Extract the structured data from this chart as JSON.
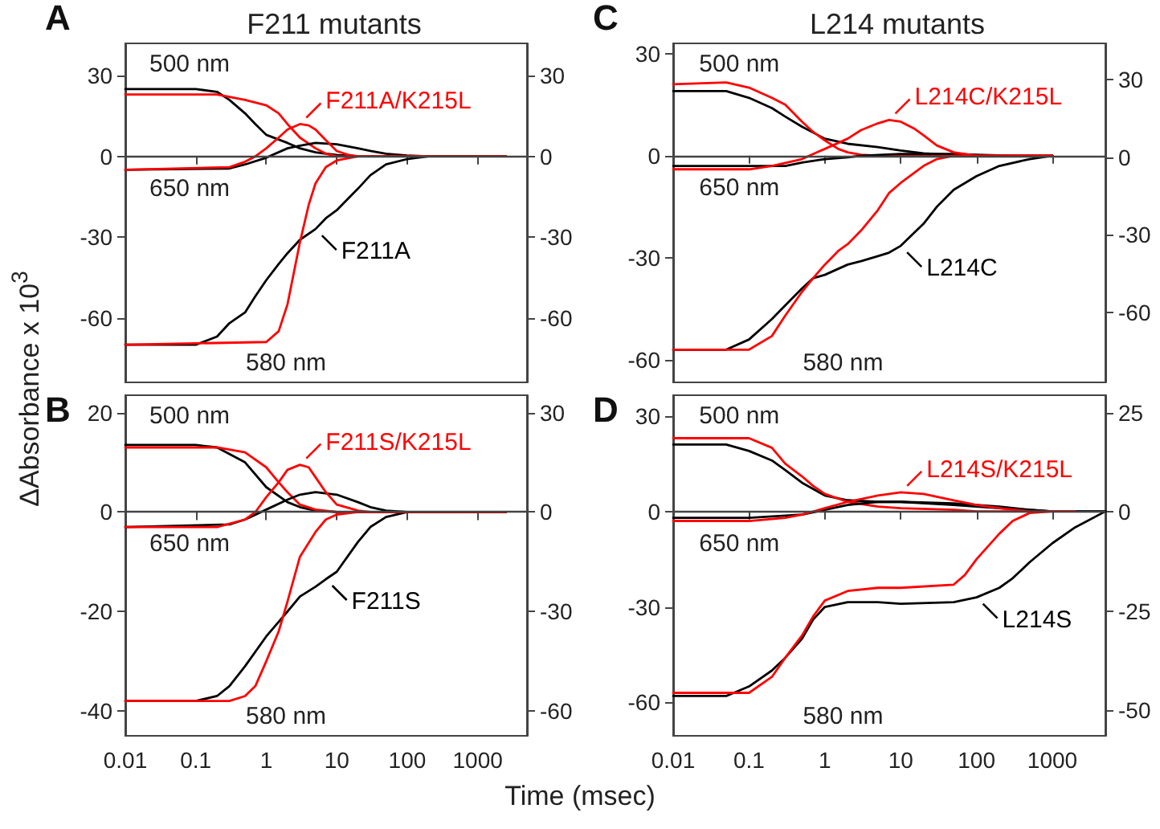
{
  "chart_data": [
    {
      "type": "line",
      "title": "F211 mutants",
      "ylabel": "ΔAbsorbance x 10$^{3}$",
      "log": "x",
      "marker": "none",
      "tick_labels": "y",
      "xlim": [
        0.01,
        5000
      ],
      "xticks": [
        0.01,
        0.1,
        1,
        10,
        100,
        1000
      ],
      "ylim": [
        -84,
        42
      ],
      "yticks": [
        -60,
        -30,
        0,
        30
      ],
      "y2lim": [
        -84,
        42
      ],
      "y2ticks": [
        -60,
        -30,
        0,
        30
      ],
      "ref_lines": [
        {
          "axis": "y",
          "value": 0
        }
      ],
      "annotations": [
        "A",
        "500 nm",
        "650 nm",
        "580 nm",
        {
          "text": "F211A/K215L",
          "x": 3,
          "y": 12
        },
        {
          "text": "F211A",
          "x": 5,
          "y": -27
        }
      ],
      "series": [
        {
          "color": "#000000",
          "x": [
            0.01,
            0.1,
            0.2,
            0.3,
            0.5,
            0.7,
            1,
            2,
            3,
            5,
            10,
            20,
            2500
          ],
          "values": [
            25,
            25,
            24,
            21,
            16,
            12,
            8,
            5,
            3,
            1.5,
            0.5,
            0,
            0
          ]
        },
        {
          "color": "#ff0000",
          "x": [
            0.01,
            0.1,
            0.2,
            0.5,
            1,
            1.5,
            2,
            3,
            5,
            7,
            10,
            2500
          ],
          "values": [
            23,
            23,
            23,
            21,
            19,
            16,
            12,
            7,
            3,
            1,
            0,
            0
          ]
        },
        {
          "color": "#000000",
          "x": [
            0.01,
            0.3,
            0.5,
            1,
            2,
            3,
            5,
            10,
            20,
            30,
            50,
            100,
            200,
            2500
          ],
          "values": [
            -5,
            -4.5,
            -3,
            -0.5,
            3,
            4,
            5,
            4.5,
            3,
            2,
            1,
            0.3,
            0,
            0
          ]
        },
        {
          "color": "#ff0000",
          "x": [
            0.01,
            0.3,
            0.5,
            0.7,
            1,
            1.5,
            2,
            3,
            4,
            5,
            7,
            10,
            15,
            20,
            2500
          ],
          "values": [
            -5,
            -4,
            -2,
            0,
            3,
            7,
            10,
            12,
            11.5,
            10,
            6,
            2,
            0.5,
            0,
            0
          ]
        },
        {
          "color": "#000000",
          "x": [
            0.01,
            0.1,
            0.2,
            0.3,
            0.5,
            0.7,
            1,
            1.5,
            2,
            3,
            5,
            7,
            10,
            20,
            30,
            50,
            100,
            200,
            2500
          ],
          "values": [
            -70,
            -70,
            -67,
            -62,
            -58,
            -52,
            -46,
            -40,
            -36,
            -31,
            -27,
            -23,
            -20,
            -12,
            -7,
            -3,
            -1,
            0,
            0
          ]
        },
        {
          "color": "#ff0000",
          "x": [
            0.01,
            1,
            1.5,
            2,
            3,
            4,
            5,
            7,
            10,
            20,
            2500
          ],
          "values": [
            -70,
            -69,
            -65,
            -55,
            -32,
            -18,
            -10,
            -4,
            -1.5,
            0,
            0
          ]
        }
      ]
    },
    {
      "type": "line",
      "xlabel": "Time (msec)",
      "log": "x",
      "marker": "none",
      "xlim": [
        0.01,
        5000
      ],
      "xticks": [
        0.01,
        0.1,
        1,
        10,
        100,
        1000
      ],
      "ylim": [
        -45,
        23.5
      ],
      "yticks": [
        -40,
        -20,
        0,
        20
      ],
      "y2lim": [
        -67.5,
        35.25
      ],
      "y2ticks": [
        -60,
        -30,
        0,
        30
      ],
      "ref_lines": [
        {
          "axis": "y",
          "value": 0
        }
      ],
      "annotations": [
        "B",
        "500 nm",
        "650 nm",
        "580 nm",
        {
          "text": "F211S/K215L",
          "x": 3,
          "y": 9.5
        },
        {
          "text": "F211S",
          "x": 7,
          "y": -13.5
        }
      ],
      "series": [
        {
          "color": "#000000",
          "x": [
            0.01,
            0.1,
            0.2,
            0.5,
            1,
            2,
            3,
            5,
            10,
            2500
          ],
          "values": [
            13.5,
            13.5,
            13,
            10,
            5,
            2,
            1,
            0.3,
            0,
            0
          ]
        },
        {
          "color": "#ff0000",
          "x": [
            0.01,
            0.2,
            0.5,
            1,
            1.5,
            2,
            3,
            5,
            10,
            2500
          ],
          "values": [
            13,
            13,
            12,
            9,
            6,
            4,
            1.5,
            0.5,
            0,
            0
          ]
        },
        {
          "color": "#000000",
          "x": [
            0.01,
            0.3,
            0.5,
            1,
            2,
            3,
            5,
            10,
            20,
            30,
            50,
            100,
            2500
          ],
          "values": [
            -3,
            -2.5,
            -1.5,
            0.5,
            2.5,
            3.5,
            4,
            3.5,
            2,
            1,
            0.3,
            0,
            0
          ]
        },
        {
          "color": "#ff0000",
          "x": [
            0.01,
            0.2,
            0.5,
            0.7,
            1,
            1.5,
            2,
            3,
            4,
            5,
            7,
            10,
            20,
            30,
            2500
          ],
          "values": [
            -3,
            -3,
            -1.5,
            0,
            3,
            6,
            8.5,
            9.5,
            9,
            7,
            4,
            1.5,
            0.3,
            0,
            0
          ]
        },
        {
          "color": "#000000",
          "x": [
            0.01,
            0.1,
            0.2,
            0.3,
            0.5,
            1,
            2,
            3,
            5,
            7,
            10,
            20,
            30,
            50,
            100,
            2500
          ],
          "values": [
            -38,
            -38,
            -37,
            -35,
            -31,
            -25,
            -20,
            -17,
            -15,
            -13.5,
            -12,
            -6,
            -3,
            -1,
            0,
            0
          ]
        },
        {
          "color": "#ff0000",
          "x": [
            0.01,
            0.3,
            0.5,
            0.7,
            1,
            1.5,
            2,
            3,
            5,
            7,
            10,
            20,
            2500
          ],
          "values": [
            -38,
            -38,
            -37,
            -35,
            -30,
            -24,
            -18,
            -9,
            -4,
            -1.5,
            -0.5,
            0,
            0
          ]
        }
      ]
    },
    {
      "type": "line",
      "title": "L214 mutants",
      "log": "x",
      "marker": "none",
      "tick_labels": "y",
      "xlim": [
        0.01,
        5000
      ],
      "xticks": [
        0.01,
        0.1,
        1,
        10,
        100,
        1000
      ],
      "ylim": [
        -66.6,
        33
      ],
      "yticks": [
        -60,
        -30,
        0,
        30
      ],
      "y2lim": [
        -87,
        44
      ],
      "y2ticks": [
        -60,
        -30,
        0,
        30
      ],
      "ref_lines": [
        {
          "axis": "y",
          "value": 0
        }
      ],
      "annotations": [
        "C",
        "500 nm",
        "650 nm",
        "580 nm",
        {
          "text": "L214C/K215L",
          "x": 7,
          "y": 10.5
        },
        {
          "text": "L214C",
          "x": 10,
          "y": -26.5
        }
      ],
      "series": [
        {
          "color": "#000000",
          "x": [
            0.01,
            0.05,
            0.1,
            0.2,
            0.3,
            0.5,
            1,
            2,
            5,
            10,
            20,
            50,
            100,
            1000
          ],
          "values": [
            19,
            19,
            17,
            14,
            11.5,
            8.5,
            5,
            3.5,
            2.5,
            1.5,
            0.7,
            0.2,
            0,
            0
          ]
        },
        {
          "color": "#ff0000",
          "x": [
            0.01,
            0.05,
            0.1,
            0.2,
            0.3,
            0.5,
            0.7,
            1,
            1.5,
            2,
            3,
            5,
            1000
          ],
          "values": [
            21,
            21.5,
            20,
            17,
            15,
            10,
            7,
            4.5,
            2,
            1,
            0.3,
            0,
            0
          ]
        },
        {
          "color": "#000000",
          "x": [
            0.01,
            0.3,
            0.5,
            1,
            2,
            3,
            10,
            50,
            100,
            300,
            1000
          ],
          "values": [
            -3,
            -3,
            -2,
            -1,
            -0.5,
            0,
            0.5,
            0.5,
            0.3,
            0,
            0
          ]
        },
        {
          "color": "#ff0000",
          "x": [
            0.01,
            0.1,
            0.2,
            0.5,
            0.7,
            1,
            2,
            3,
            5,
            7,
            10,
            15,
            20,
            30,
            50,
            100,
            1000
          ],
          "values": [
            -4,
            -4,
            -3,
            -1,
            0.5,
            2,
            5,
            7.5,
            9.5,
            10.5,
            10,
            8,
            6,
            3,
            1,
            0,
            0
          ]
        },
        {
          "color": "#000000",
          "x": [
            0.01,
            0.05,
            0.1,
            0.2,
            0.3,
            0.5,
            0.7,
            1,
            2,
            3,
            5,
            7,
            10,
            20,
            30,
            50,
            100,
            200,
            500,
            1000
          ],
          "values": [
            -57,
            -57,
            -54,
            -48,
            -44,
            -39,
            -36,
            -35,
            -32,
            -31,
            -29.5,
            -28.5,
            -26.5,
            -20,
            -15,
            -10,
            -6,
            -3,
            -1,
            0
          ]
        },
        {
          "color": "#ff0000",
          "x": [
            0.01,
            0.1,
            0.2,
            0.3,
            0.5,
            0.7,
            1,
            1.5,
            2,
            3,
            5,
            7,
            10,
            20,
            30,
            50,
            1000
          ],
          "values": [
            -57,
            -57,
            -53,
            -47,
            -40,
            -36,
            -32,
            -28,
            -26,
            -22,
            -16,
            -11,
            -8,
            -3,
            -1,
            0,
            0
          ]
        }
      ]
    },
    {
      "type": "line",
      "log": "x",
      "marker": "none",
      "xlim": [
        0.01,
        5000
      ],
      "xticks": [
        0.01,
        0.1,
        1,
        10,
        100,
        1000
      ],
      "ylim": [
        -70.5,
        36.5
      ],
      "yticks": [
        -60,
        -30,
        0,
        30
      ],
      "y2lim": [
        -56.5,
        29.5
      ],
      "y2ticks": [
        -50,
        -25,
        0,
        25
      ],
      "ref_lines": [
        {
          "axis": "y",
          "value": 0
        }
      ],
      "annotations": [
        "D",
        "500 nm",
        "650 nm",
        "580 nm",
        {
          "text": "L214S/K215L",
          "x": 10,
          "y": 6
        },
        {
          "text": "L214S",
          "x": 100,
          "y": -27
        }
      ],
      "series": [
        {
          "color": "#000000",
          "x": [
            0.01,
            0.05,
            0.1,
            0.2,
            0.3,
            0.5,
            1,
            2,
            5,
            10,
            50,
            100,
            200,
            500,
            1000,
            5000
          ],
          "values": [
            21,
            21,
            19,
            16,
            13,
            9,
            5,
            3.5,
            3,
            3,
            2.5,
            2,
            1.5,
            0.5,
            0,
            0
          ]
        },
        {
          "color": "#ff0000",
          "x": [
            0.01,
            0.1,
            0.2,
            0.3,
            0.5,
            0.7,
            1,
            2,
            5,
            10,
            50,
            100,
            2000
          ],
          "values": [
            23,
            23,
            20,
            15,
            11,
            8,
            5.5,
            3,
            1.5,
            1,
            0.5,
            0,
            0
          ]
        },
        {
          "color": "#000000",
          "x": [
            0.01,
            0.1,
            0.5,
            1,
            2,
            5,
            10,
            50,
            100,
            200,
            500,
            1000,
            5000
          ],
          "values": [
            -2,
            -2,
            -1,
            0.5,
            2,
            3,
            3,
            2,
            1.5,
            1,
            0.5,
            0,
            0
          ]
        },
        {
          "color": "#ff0000",
          "x": [
            0.01,
            0.1,
            0.3,
            0.5,
            1,
            2,
            5,
            10,
            20,
            50,
            100,
            200,
            500,
            2000
          ],
          "values": [
            -3,
            -3,
            -2,
            -1,
            1,
            3,
            5,
            6,
            5.5,
            3.5,
            2,
            1,
            0,
            0
          ]
        },
        {
          "color": "#000000",
          "x": [
            0.01,
            0.05,
            0.1,
            0.2,
            0.3,
            0.5,
            0.7,
            1,
            2,
            5,
            10,
            50,
            100,
            200,
            300,
            500,
            1000,
            2000,
            5000
          ],
          "values": [
            -58,
            -58,
            -55,
            -50,
            -46,
            -40,
            -34,
            -30,
            -28.5,
            -28.5,
            -29,
            -28.5,
            -27,
            -24,
            -21,
            -16,
            -10,
            -5,
            0
          ]
        },
        {
          "color": "#ff0000",
          "x": [
            0.01,
            0.1,
            0.2,
            0.3,
            0.5,
            0.7,
            1,
            2,
            5,
            10,
            50,
            70,
            100,
            200,
            300,
            500,
            1000,
            2000
          ],
          "values": [
            -57,
            -57,
            -52,
            -46,
            -39,
            -33,
            -28,
            -25,
            -24,
            -24,
            -23,
            -20,
            -15,
            -7,
            -3,
            -0.5,
            0,
            0
          ]
        }
      ]
    }
  ]
}
